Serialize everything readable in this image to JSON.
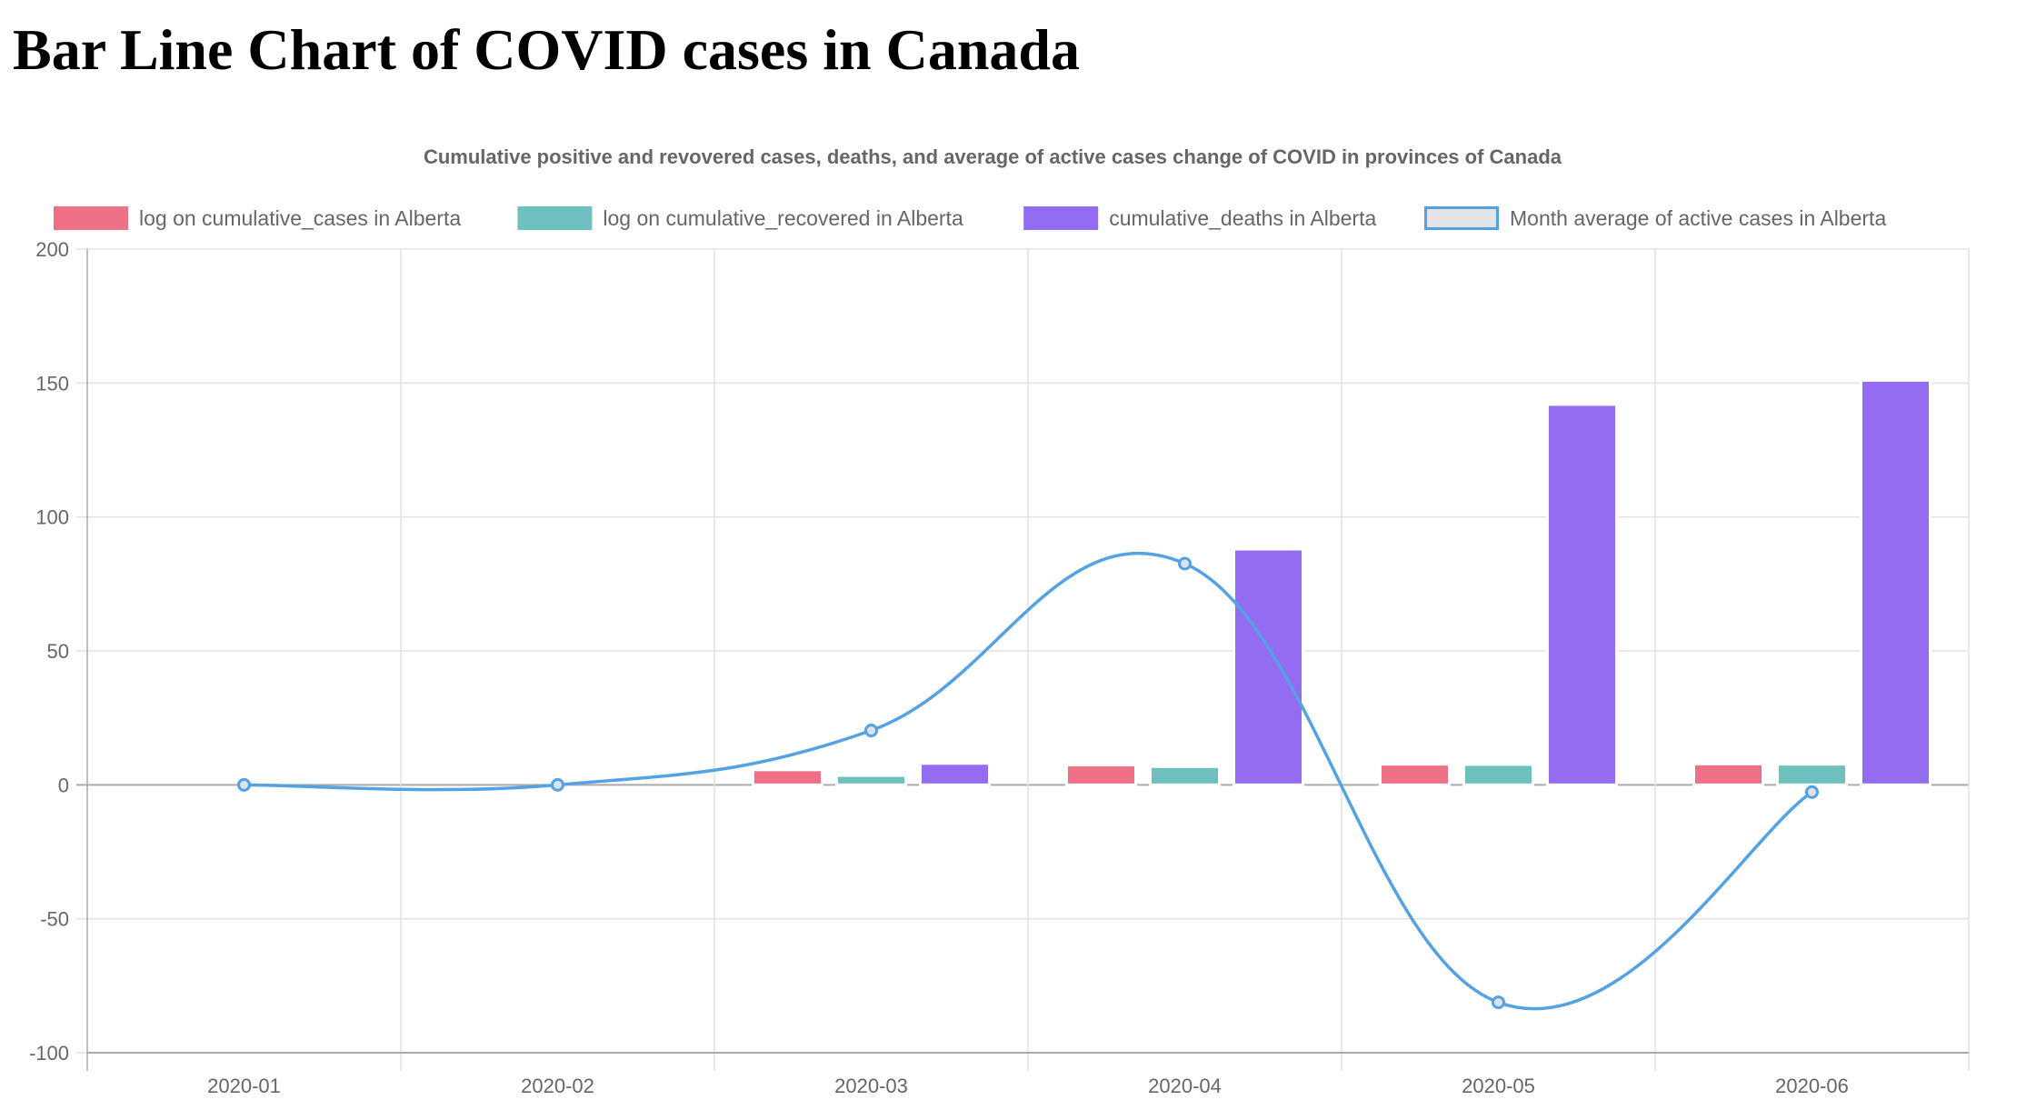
{
  "page": {
    "title": "Bar Line Chart of COVID cases in Canada"
  },
  "chart_data": {
    "type": "bar",
    "title": "Cumulative positive and revovered cases, deaths, and average of active cases change of COVID in provinces of Canada",
    "categories": [
      "2020-01",
      "2020-02",
      "2020-03",
      "2020-04",
      "2020-05",
      "2020-06"
    ],
    "ylim": [
      -100,
      200
    ],
    "yticks": [
      200,
      150,
      100,
      50,
      0,
      -50,
      -100
    ],
    "grid": true,
    "legend_position": "top",
    "series": [
      {
        "name": "log on cumulative_cases in Alberta",
        "type": "bar",
        "color": "#ef6f86",
        "values": [
          null,
          null,
          5.6,
          7.4,
          7.7,
          7.8
        ]
      },
      {
        "name": "log on cumulative_recovered in Alberta",
        "type": "bar",
        "color": "#6ec0bf",
        "values": [
          null,
          null,
          3.5,
          6.8,
          7.6,
          7.7
        ]
      },
      {
        "name": "cumulative_deaths in Alberta",
        "type": "bar",
        "color": "#946cf2",
        "values": [
          null,
          null,
          8,
          88,
          142,
          151
        ]
      },
      {
        "name": "Month average of active cases in Alberta",
        "type": "line",
        "color": "#54a1e4",
        "values": [
          0,
          0,
          20.3,
          82.6,
          -81.2,
          -2.7
        ]
      }
    ]
  }
}
